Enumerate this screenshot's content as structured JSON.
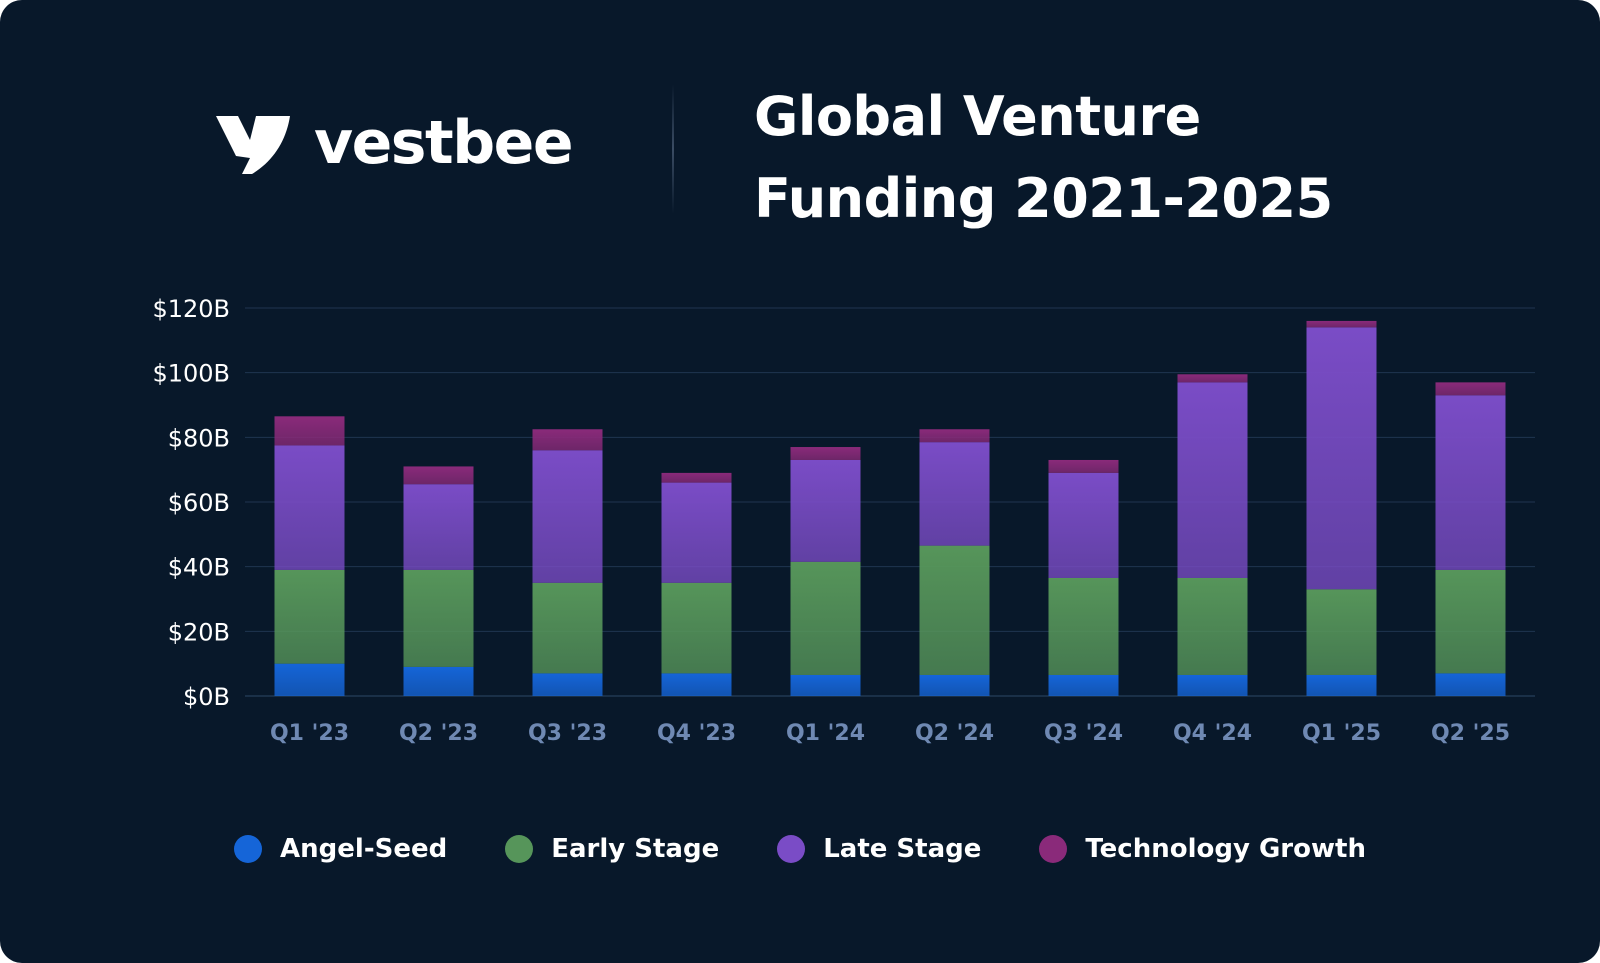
{
  "brand": {
    "name": "vestbee",
    "logo_icon": "vestbee-v-icon"
  },
  "header": {
    "title_line1": "Global Venture",
    "title_line2": "Funding 2021-2025"
  },
  "colors": {
    "background": "#08182a",
    "angel_seed": "#1565d8",
    "early_stage": "#56955a",
    "late_stage": "#7a4cc6",
    "technology_growth": "#8a2a7a"
  },
  "chart_data": {
    "type": "bar",
    "stacked": true,
    "title": "Global Venture Funding 2021-2025",
    "xlabel": "",
    "ylabel": "",
    "ylim": [
      0,
      120
    ],
    "y_ticks": [
      0,
      20,
      40,
      60,
      80,
      100,
      120
    ],
    "y_tick_labels": [
      "$0B",
      "$20B",
      "$40B",
      "$60B",
      "$80B",
      "$100B",
      "$120B"
    ],
    "grid": true,
    "legend_position": "bottom-center",
    "categories": [
      "Q1 '23",
      "Q2 '23",
      "Q3 '23",
      "Q4 '23",
      "Q1 '24",
      "Q2 '24",
      "Q3 '24",
      "Q4 '24",
      "Q1 '25",
      "Q2 '25"
    ],
    "series": [
      {
        "name": "Angel-Seed",
        "color": "#1565d8",
        "values": [
          10,
          9,
          7,
          7,
          6.5,
          6.5,
          6.5,
          6.5,
          6.5,
          7
        ]
      },
      {
        "name": "Early Stage",
        "color": "#56955a",
        "values": [
          29,
          30,
          28,
          28,
          35,
          40,
          30,
          30,
          26.5,
          32
        ]
      },
      {
        "name": "Late Stage",
        "color": "#7a4cc6",
        "values": [
          38.5,
          26.5,
          41,
          31,
          31.5,
          32,
          32.5,
          60.5,
          81,
          54
        ]
      },
      {
        "name": "Technology Growth",
        "color": "#8a2a7a",
        "values": [
          9,
          5.5,
          6.5,
          3,
          4,
          4,
          4,
          2.5,
          2,
          4
        ]
      }
    ]
  }
}
